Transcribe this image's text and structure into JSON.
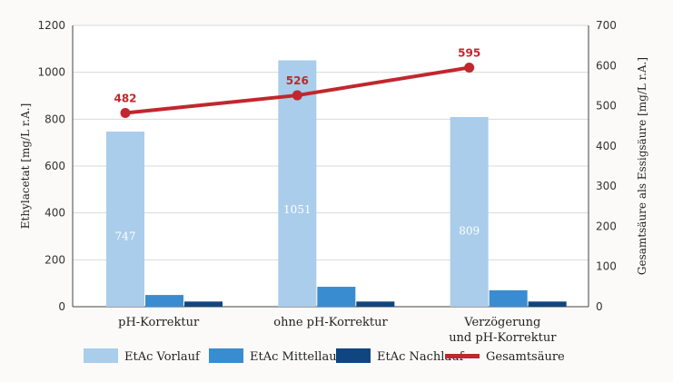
{
  "chart_data": {
    "type": "bar",
    "categories": [
      "pH-Korrektur",
      "ohne pH-Korrektur",
      "Verzögerung\nund pH-Korrektur"
    ],
    "series": [
      {
        "name": "EtAc Vorlauf",
        "values": [
          747,
          1051,
          809
        ],
        "color": "#a9cdea",
        "axis": "left",
        "labels": [
          "747",
          "1051",
          "809"
        ]
      },
      {
        "name": "EtAc Mittellauf",
        "values": [
          50,
          85,
          70
        ],
        "color": "#3a8cd0",
        "axis": "left"
      },
      {
        "name": "EtAc Nachlauf",
        "values": [
          22,
          22,
          22
        ],
        "color": "#10467f",
        "axis": "left"
      }
    ],
    "line_series": {
      "name": "Gesamtsäure",
      "values": [
        482,
        526,
        595
      ],
      "labels": [
        "482",
        "526",
        "595"
      ],
      "color": "#c1272d",
      "axis": "right"
    },
    "ylabel": "Ethylacetat [mg/L r.A.]",
    "y2label": "Gesamtsäure als Essigsäure [mg/L r.A.]",
    "ylim": [
      0,
      1200
    ],
    "y2lim": [
      0,
      700
    ],
    "yticks": [
      "0",
      "200",
      "400",
      "600",
      "800",
      "1000",
      "1200"
    ],
    "y2ticks": [
      "0",
      "100",
      "200",
      "300",
      "400",
      "500",
      "600",
      "700"
    ],
    "grid": true,
    "legend_position": "bottom"
  }
}
